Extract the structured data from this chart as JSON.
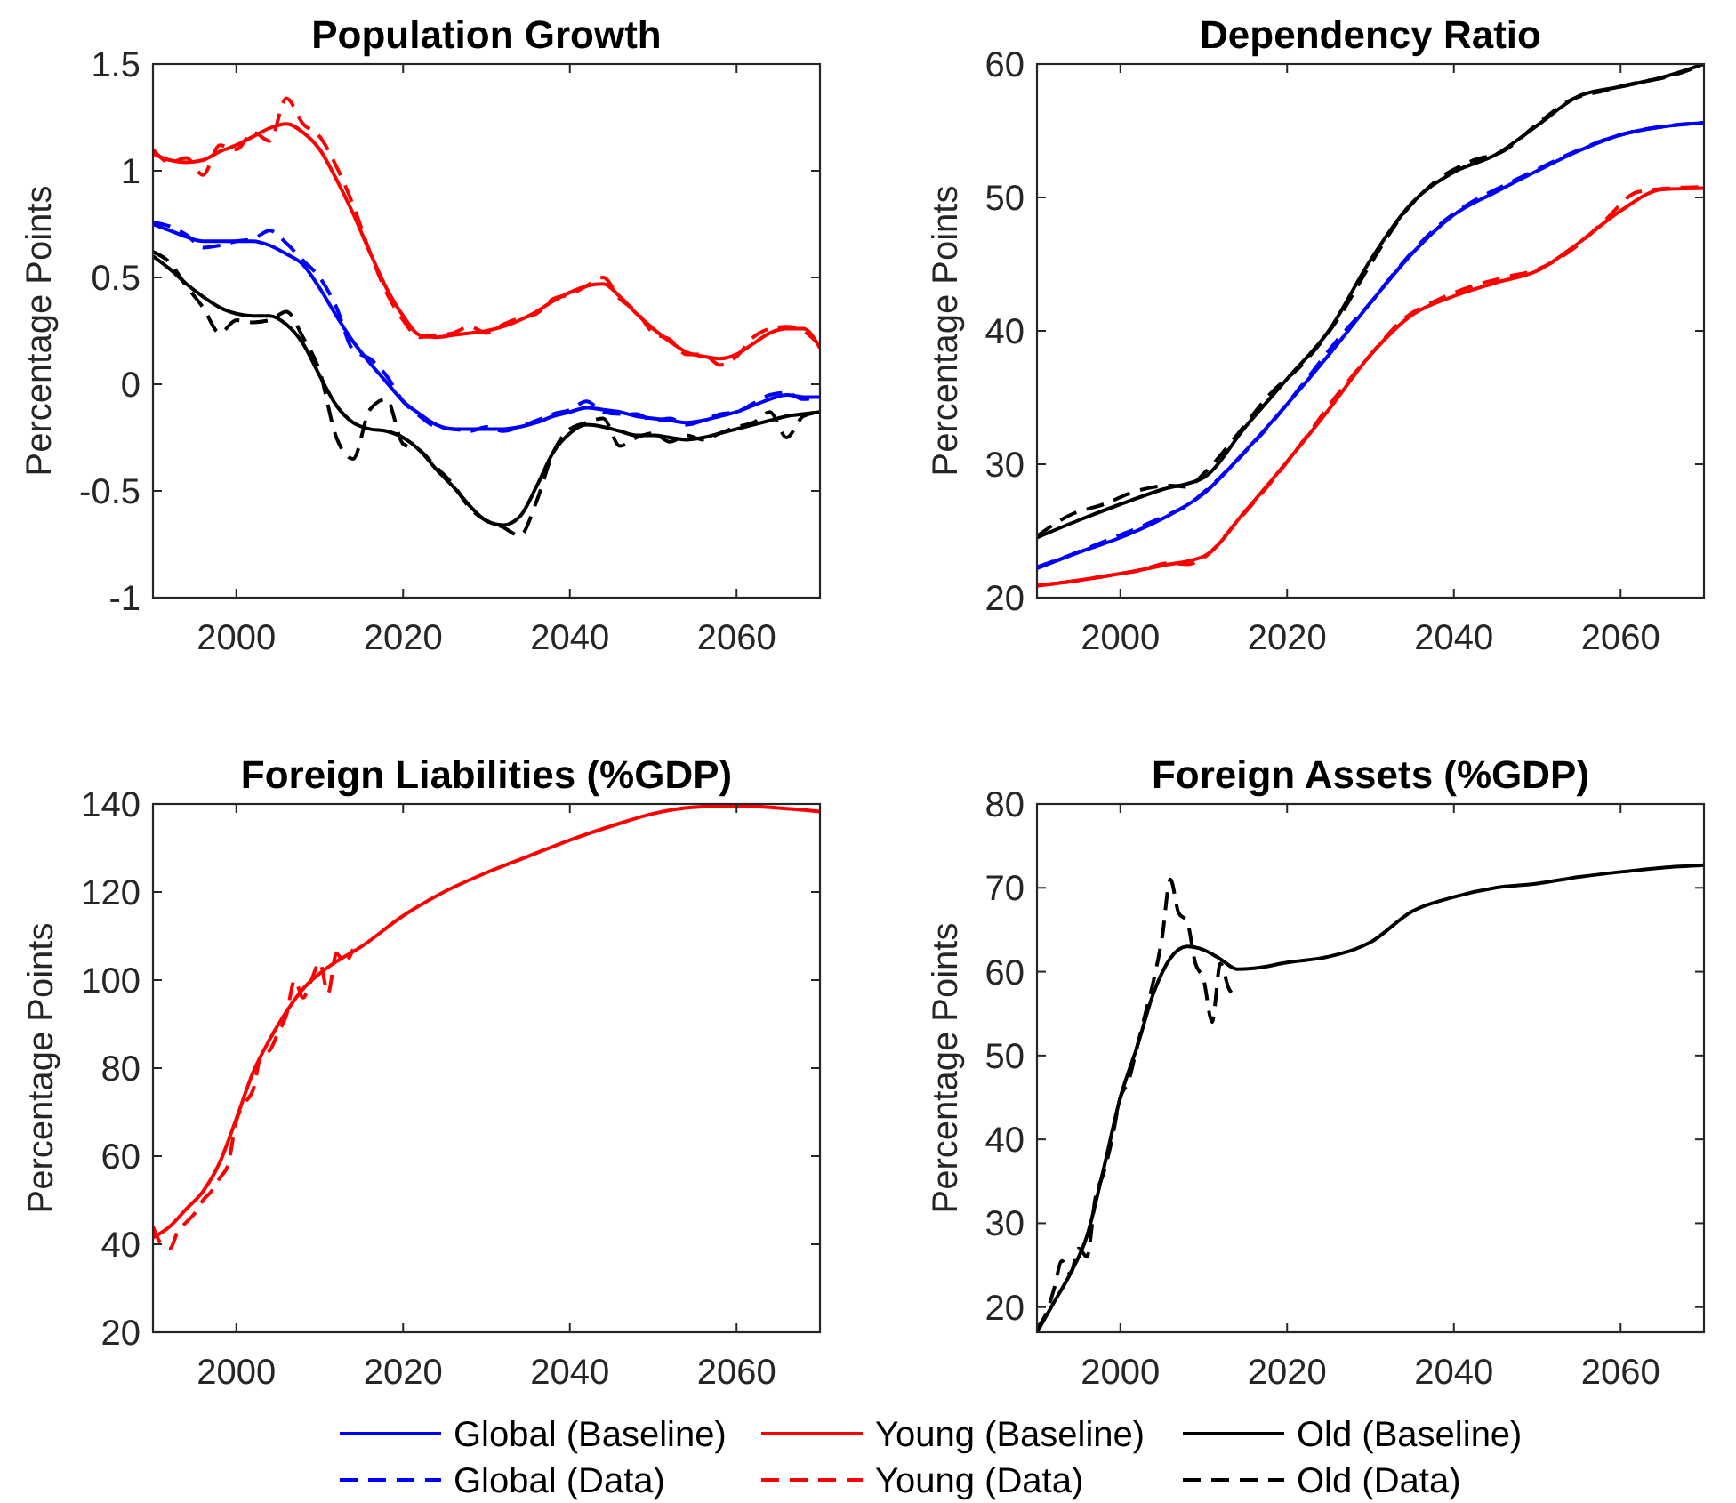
{
  "chart_data": [
    {
      "type": "line",
      "title": "Population Growth",
      "ylabel": "Percentage Points",
      "xlim": [
        1990,
        2070
      ],
      "xticks": [
        2000,
        2020,
        2040,
        2060
      ],
      "ylim": [
        -1,
        1.5
      ],
      "yticks": [
        -1,
        -0.5,
        0,
        0.5,
        1,
        1.5
      ],
      "legend": "bottom",
      "x": [
        1990,
        1992,
        1994,
        1996,
        1998,
        2000,
        2002,
        2004,
        2006,
        2008,
        2010,
        2012,
        2014,
        2016,
        2018,
        2020,
        2022,
        2024,
        2026,
        2028,
        2030,
        2032,
        2034,
        2036,
        2038,
        2040,
        2042,
        2044,
        2046,
        2048,
        2050,
        2052,
        2054,
        2056,
        2058,
        2060,
        2062,
        2064,
        2066,
        2068,
        2070
      ],
      "series": [
        {
          "name": "Global (Baseline)",
          "color": "#0000ff",
          "line_style": "solid",
          "values": [
            0.75,
            0.72,
            0.69,
            0.67,
            0.67,
            0.67,
            0.67,
            0.65,
            0.61,
            0.56,
            0.45,
            0.32,
            0.2,
            0.1,
            0.01,
            -0.08,
            -0.14,
            -0.19,
            -0.21,
            -0.21,
            -0.21,
            -0.21,
            -0.2,
            -0.18,
            -0.15,
            -0.13,
            -0.11,
            -0.12,
            -0.13,
            -0.15,
            -0.16,
            -0.17,
            -0.18,
            -0.17,
            -0.15,
            -0.13,
            -0.1,
            -0.07,
            -0.05,
            -0.06,
            -0.06
          ]
        },
        {
          "name": "Young (Baseline)",
          "color": "#ff0000",
          "line_style": "solid",
          "values": [
            1.08,
            1.05,
            1.04,
            1.05,
            1.09,
            1.12,
            1.16,
            1.2,
            1.22,
            1.18,
            1.1,
            0.96,
            0.8,
            0.62,
            0.45,
            0.32,
            0.23,
            0.22,
            0.23,
            0.24,
            0.25,
            0.27,
            0.3,
            0.34,
            0.39,
            0.43,
            0.46,
            0.47,
            0.41,
            0.33,
            0.26,
            0.2,
            0.15,
            0.13,
            0.12,
            0.14,
            0.19,
            0.24,
            0.26,
            0.26,
            0.17
          ]
        },
        {
          "name": "Old (Baseline)",
          "color": "#000000",
          "line_style": "solid",
          "values": [
            0.6,
            0.54,
            0.47,
            0.41,
            0.36,
            0.33,
            0.32,
            0.32,
            0.28,
            0.19,
            0.04,
            -0.1,
            -0.18,
            -0.21,
            -0.22,
            -0.25,
            -0.31,
            -0.4,
            -0.48,
            -0.57,
            -0.64,
            -0.66,
            -0.62,
            -0.48,
            -0.32,
            -0.23,
            -0.19,
            -0.2,
            -0.22,
            -0.24,
            -0.24,
            -0.25,
            -0.26,
            -0.25,
            -0.23,
            -0.21,
            -0.19,
            -0.17,
            -0.15,
            -0.14,
            -0.13
          ]
        },
        {
          "name": "Global (Data)",
          "color": "#0000ff",
          "line_style": "dashed",
          "values": [
            0.76,
            0.74,
            0.7,
            0.64,
            0.65,
            0.67,
            0.68,
            0.72,
            0.66,
            0.58,
            0.5,
            0.36,
            0.16,
            0.12,
            0.04,
            -0.08,
            -0.15,
            -0.2,
            -0.21,
            -0.22,
            -0.2,
            -0.22,
            -0.2,
            -0.17,
            -0.14,
            -0.12,
            -0.08,
            -0.13,
            -0.14,
            -0.14,
            -0.17,
            -0.16,
            -0.19,
            -0.17,
            -0.14,
            -0.13,
            -0.09,
            -0.05,
            -0.04,
            -0.07,
            -0.06
          ]
        },
        {
          "name": "Young (Data)",
          "color": "#ff0000",
          "line_style": "dashed",
          "values": [
            1.1,
            1.04,
            1.06,
            0.98,
            1.12,
            1.1,
            1.18,
            1.14,
            1.34,
            1.22,
            1.16,
            1.02,
            0.84,
            0.62,
            0.43,
            0.3,
            0.22,
            0.23,
            0.24,
            0.27,
            0.24,
            0.28,
            0.31,
            0.33,
            0.4,
            0.42,
            0.46,
            0.5,
            0.4,
            0.34,
            0.24,
            0.21,
            0.14,
            0.14,
            0.09,
            0.13,
            0.22,
            0.26,
            0.27,
            0.25,
            0.18
          ]
        },
        {
          "name": "Old (Data)",
          "color": "#000000",
          "line_style": "dashed",
          "values": [
            0.62,
            0.57,
            0.46,
            0.36,
            0.24,
            0.3,
            0.29,
            0.3,
            0.34,
            0.22,
            0.06,
            -0.25,
            -0.35,
            -0.12,
            -0.07,
            -0.28,
            -0.31,
            -0.39,
            -0.47,
            -0.58,
            -0.64,
            -0.67,
            -0.71,
            -0.55,
            -0.32,
            -0.21,
            -0.18,
            -0.16,
            -0.29,
            -0.25,
            -0.23,
            -0.27,
            -0.24,
            -0.26,
            -0.23,
            -0.2,
            -0.18,
            -0.13,
            -0.25,
            -0.15,
            -0.13
          ]
        }
      ]
    },
    {
      "type": "line",
      "title": "Dependency Ratio",
      "ylabel": "Percentage Points",
      "xlim": [
        1990,
        2070
      ],
      "xticks": [
        2000,
        2020,
        2040,
        2060
      ],
      "ylim": [
        20,
        60
      ],
      "yticks": [
        20,
        30,
        40,
        50,
        60
      ],
      "series": [
        {
          "name": "Global (Baseline)",
          "color": "#0000ff",
          "line_style": "solid",
          "x": [
            1990,
            1995,
            2000,
            2005,
            2010,
            2015,
            2020,
            2025,
            2030,
            2035,
            2040,
            2045,
            2050,
            2055,
            2060,
            2065,
            2070
          ],
          "values": [
            22.2,
            23.4,
            24.5,
            25.9,
            27.8,
            31.0,
            34.5,
            38.2,
            42.1,
            45.8,
            48.7,
            50.4,
            52.0,
            53.5,
            54.7,
            55.3,
            55.6
          ]
        },
        {
          "name": "Young (Baseline)",
          "color": "#ff0000",
          "line_style": "solid",
          "x": [
            1990,
            1995,
            2000,
            2005,
            2010,
            2015,
            2020,
            2025,
            2030,
            2035,
            2040,
            2045,
            2050,
            2055,
            2060,
            2065,
            2070
          ],
          "values": [
            20.9,
            21.3,
            21.8,
            22.4,
            23.1,
            26.5,
            30.2,
            34.1,
            38.2,
            41.2,
            42.6,
            43.6,
            44.5,
            46.6,
            49.0,
            50.6,
            50.7
          ]
        },
        {
          "name": "Old (Baseline)",
          "color": "#000000",
          "line_style": "solid",
          "x": [
            1990,
            1995,
            2000,
            2005,
            2010,
            2015,
            2020,
            2025,
            2030,
            2035,
            2040,
            2045,
            2050,
            2055,
            2060,
            2065,
            2070
          ],
          "values": [
            24.5,
            25.8,
            27.0,
            28.1,
            29.0,
            32.8,
            36.4,
            40.0,
            45.3,
            49.6,
            51.9,
            53.2,
            55.4,
            57.6,
            58.3,
            59.0,
            60
          ]
        },
        {
          "name": "Global (Data)",
          "color": "#0000ff",
          "line_style": "dashed",
          "x": [
            1990,
            1994,
            1998,
            2002,
            2006,
            2008,
            2010,
            2014,
            2018,
            2022,
            2026,
            2030,
            2034,
            2038,
            2042,
            2046,
            2050,
            2054,
            2058,
            2062,
            2066,
            2070
          ],
          "values": [
            22.3,
            23.2,
            24.2,
            25.2,
            26.3,
            26.9,
            27.9,
            30.3,
            33.0,
            36.1,
            39.3,
            42.1,
            45.2,
            47.8,
            49.6,
            50.9,
            52.1,
            53.3,
            54.3,
            55.0,
            55.4,
            55.6
          ]
        },
        {
          "name": "Young (Data)",
          "color": "#ff0000",
          "line_style": "dashed",
          "x": [
            1990,
            1994,
            1998,
            2002,
            2006,
            2008,
            2010,
            2014,
            2018,
            2022,
            2026,
            2030,
            2034,
            2038,
            2042,
            2046,
            2050,
            2054,
            2058,
            2062,
            2066,
            2070
          ],
          "values": [
            20.9,
            21.2,
            21.6,
            22.0,
            22.6,
            22.5,
            23.0,
            25.7,
            28.6,
            31.8,
            35.2,
            38.2,
            40.9,
            42.3,
            43.3,
            44.0,
            44.6,
            46.0,
            48.2,
            50.4,
            50.7,
            50.8
          ]
        },
        {
          "name": "Old (Data)",
          "color": "#000000",
          "line_style": "dashed",
          "x": [
            1990,
            1994,
            1998,
            2002,
            2006,
            2008,
            2010,
            2014,
            2018,
            2022,
            2026,
            2030,
            2034,
            2038,
            2042,
            2046,
            2050,
            2054,
            2058,
            2062,
            2066,
            2070
          ],
          "values": [
            24.6,
            26.2,
            27.0,
            28.0,
            28.4,
            28.3,
            29.3,
            32.2,
            35.3,
            37.6,
            40.8,
            45.0,
            48.8,
            51.3,
            52.7,
            53.5,
            55.5,
            57.3,
            58.0,
            58.6,
            59.1,
            60
          ]
        }
      ]
    },
    {
      "type": "line",
      "title": "Foreign Liabilities (%GDP)",
      "ylabel": "Percentage Points",
      "xlim": [
        1990,
        2070
      ],
      "xticks": [
        2000,
        2020,
        2040,
        2060
      ],
      "ylim": [
        20,
        140
      ],
      "yticks": [
        20,
        40,
        60,
        80,
        100,
        120,
        140
      ],
      "series": [
        {
          "name": "Young (Baseline)",
          "color": "#ff0000",
          "line_style": "solid",
          "x": [
            1990,
            1992,
            1994,
            1996,
            1998,
            2000,
            2002,
            2004,
            2006,
            2008,
            2010,
            2012,
            2015,
            2020,
            2025,
            2030,
            2035,
            2040,
            2045,
            2050,
            2055,
            2060,
            2065,
            2070
          ],
          "values": [
            41.5,
            44,
            48,
            52,
            58.5,
            68.5,
            79,
            86.5,
            92.8,
            98,
            101.5,
            104.2,
            107.6,
            114.6,
            120.1,
            124.4,
            128.1,
            131.8,
            135.0,
            137.8,
            139.3,
            139.6,
            139.1,
            138.3
          ]
        },
        {
          "name": "Young (Data)",
          "color": "#ff0000",
          "line_style": "dashed",
          "x": [
            1990,
            1991,
            1992,
            1993,
            1994,
            1995,
            1996,
            1997,
            1998,
            1999,
            2000,
            2001,
            2002,
            2003,
            2004,
            2005,
            2006,
            2007,
            2008,
            2009,
            2010,
            2011,
            2012,
            2013,
            2014
          ],
          "values": [
            44,
            40,
            39,
            43,
            45,
            47,
            50,
            52,
            55,
            58,
            68,
            72,
            75,
            83,
            84,
            88,
            92,
            100,
            96,
            100,
            104,
            97,
            106,
            104,
            107
          ]
        }
      ]
    },
    {
      "type": "line",
      "title": "Foreign Assets (%GDP)",
      "ylabel": "Percentage Points",
      "xlim": [
        1990,
        2070
      ],
      "xticks": [
        2000,
        2020,
        2040,
        2060
      ],
      "ylim": [
        17,
        80
      ],
      "yticks": [
        20,
        30,
        40,
        50,
        60,
        70,
        80
      ],
      "series": [
        {
          "name": "Old (Baseline)",
          "color": "#000000",
          "line_style": "solid",
          "x": [
            1990,
            1992,
            1994,
            1996,
            1998,
            2000,
            2002,
            2004,
            2006,
            2008,
            2010,
            2012,
            2014,
            2016,
            2020,
            2025,
            2030,
            2035,
            2040,
            2045,
            2050,
            2055,
            2060,
            2065,
            2070
          ],
          "values": [
            17.0,
            20.5,
            24.0,
            28.5,
            36.5,
            45.0,
            51.0,
            57.5,
            61.6,
            63.0,
            62.6,
            61.5,
            60.3,
            60.4,
            61.1,
            61.8,
            63.5,
            67.2,
            68.9,
            70.0,
            70.5,
            71.3,
            71.9,
            72.4,
            72.7
          ]
        },
        {
          "name": "Old (Data)",
          "color": "#000000",
          "line_style": "dashed",
          "x": [
            1990,
            1991,
            1992,
            1993,
            1994,
            1995,
            1996,
            1997,
            1998,
            1999,
            2000,
            2001,
            2002,
            2003,
            2004,
            2005,
            2006,
            2007,
            2008,
            2009,
            2010,
            2011,
            2012,
            2013,
            2014
          ],
          "values": [
            17.5,
            19,
            22,
            25.5,
            24,
            27,
            26,
            33,
            36,
            40,
            45,
            47,
            51,
            55,
            59,
            64,
            71,
            67,
            66,
            61,
            59,
            54,
            61,
            58,
            57
          ]
        }
      ]
    }
  ]
}
